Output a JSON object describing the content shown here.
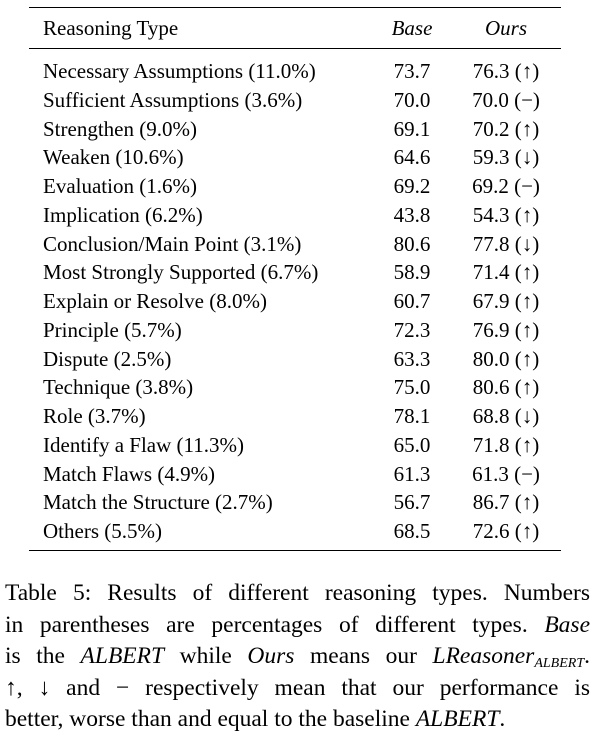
{
  "table": {
    "header": [
      "Reasoning Type",
      "Base",
      "Ours"
    ],
    "rows": [
      [
        "Necessary Assumptions (11.0%)",
        "73.7",
        "76.3 (↑)"
      ],
      [
        "Sufficient Assumptions (3.6%)",
        "70.0",
        "70.0 (−)"
      ],
      [
        "Strengthen (9.0%)",
        "69.1",
        "70.2 (↑)"
      ],
      [
        "Weaken (10.6%)",
        "64.6",
        "59.3 (↓)"
      ],
      [
        "Evaluation (1.6%)",
        "69.2",
        "69.2 (−)"
      ],
      [
        "Implication (6.2%)",
        "43.8",
        "54.3 (↑)"
      ],
      [
        "Conclusion/Main Point (3.1%)",
        "80.6",
        "77.8 (↓)"
      ],
      [
        "Most Strongly Supported (6.7%)",
        "58.9",
        "71.4 (↑)"
      ],
      [
        "Explain or Resolve (8.0%)",
        "60.7",
        "67.9 (↑)"
      ],
      [
        "Principle (5.7%)",
        "72.3",
        "76.9 (↑)"
      ],
      [
        "Dispute (2.5%)",
        "63.3",
        "80.0 (↑)"
      ],
      [
        "Technique (3.8%)",
        "75.0",
        "80.6 (↑)"
      ],
      [
        "Role (3.7%)",
        "78.1",
        "68.8 (↓)"
      ],
      [
        "Identify a Flaw (11.3%)",
        "65.0",
        "71.8 (↑)"
      ],
      [
        "Match Flaws (4.9%)",
        "61.3",
        "61.3 (−)"
      ],
      [
        "Match the Structure (2.7%)",
        "56.7",
        "86.7 (↑)"
      ],
      [
        "Others (5.5%)",
        "68.5",
        "72.6 (↑)"
      ]
    ]
  },
  "caption": {
    "lines": [
      [
        "Table 5: Results of different reasoning types. Numbers"
      ],
      [
        "in parentheses are percentages of different types. ",
        "Base"
      ],
      [
        "is the ",
        "ALBERT",
        " while ",
        "Ours",
        " means our ",
        "LReasoner",
        "ALBERT",
        "."
      ],
      [
        "↑, ↓ and − respectively mean that our performance is"
      ],
      [
        "better, worse than and equal to the baseline ",
        "ALBERT",
        "."
      ]
    ]
  }
}
